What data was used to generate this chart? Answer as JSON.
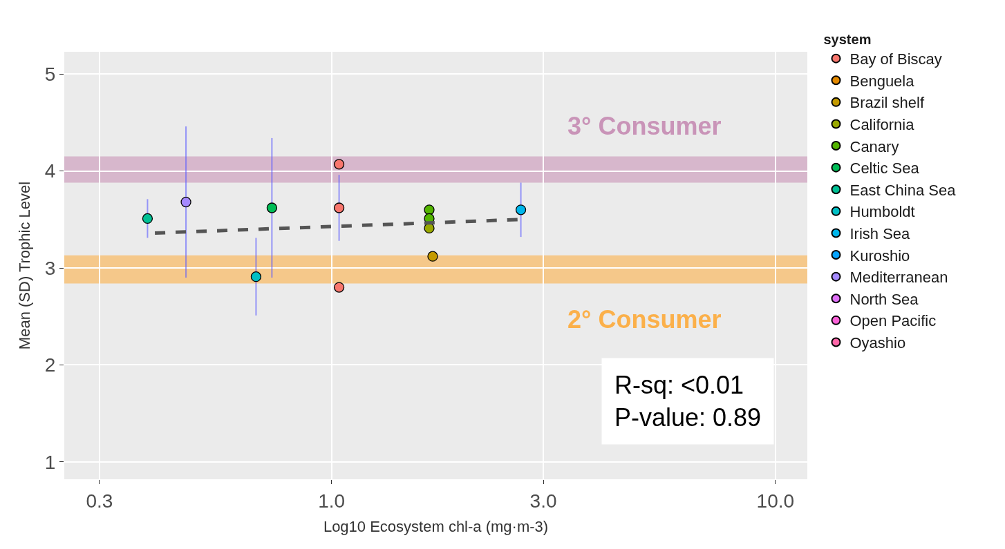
{
  "chart_data": {
    "type": "scatter",
    "xlabel": "Log10 Ecosystem chl-a (mg·m-3)",
    "ylabel": "Mean (SD) Trophic Level",
    "legend_title": "system",
    "log": "x",
    "xlim": [
      0.25,
      11.8
    ],
    "ylim": [
      0.82,
      5.23
    ],
    "xticks": [
      {
        "value": 0.3,
        "label": "0.3"
      },
      {
        "value": 1,
        "label": "1.0"
      },
      {
        "value": 3,
        "label": "3.0"
      },
      {
        "value": 10,
        "label": "10.0"
      }
    ],
    "yticks": [
      1,
      2,
      3,
      4,
      5
    ],
    "grid": true,
    "legend": "right",
    "marker": "circle",
    "series": [
      {
        "name": "Bay of Biscay",
        "color": "#f8766d",
        "x": [
          1.04,
          1.04,
          1.04
        ],
        "values": [
          4.07,
          3.62,
          2.8
        ],
        "errors": [
          null,
          0.34,
          null
        ]
      },
      {
        "name": "Benguela",
        "color": "#e38900"
      },
      {
        "name": "Brazil shelf",
        "color": "#c49a00",
        "x": [
          1.69
        ],
        "values": [
          3.12
        ]
      },
      {
        "name": "California",
        "color": "#99a800",
        "x": [
          1.66
        ],
        "values": [
          3.41
        ]
      },
      {
        "name": "Canary",
        "color": "#53b400",
        "x": [
          1.66,
          1.66
        ],
        "values": [
          3.6,
          3.51
        ]
      },
      {
        "name": "Celtic Sea",
        "color": "#00bc56",
        "x": [
          0.734
        ],
        "values": [
          3.62
        ],
        "errors": [
          0.72
        ]
      },
      {
        "name": "East China Sea",
        "color": "#00c094",
        "x": [
          0.385
        ],
        "values": [
          3.51
        ],
        "errors": [
          0.2
        ]
      },
      {
        "name": "Humboldt",
        "color": "#00bfc4",
        "x": [
          0.676
        ],
        "values": [
          2.91
        ],
        "errors": [
          0.4
        ]
      },
      {
        "name": "Irish Sea",
        "color": "#00b6eb",
        "x": [
          2.67
        ],
        "values": [
          3.6
        ],
        "errors": [
          0.28
        ]
      },
      {
        "name": "Kuroshio",
        "color": "#06a4ff"
      },
      {
        "name": "Mediterranean",
        "color": "#a58aff",
        "x": [
          0.47
        ],
        "values": [
          3.68
        ],
        "errors": [
          0.78
        ]
      },
      {
        "name": "North Sea",
        "color": "#df70f8"
      },
      {
        "name": "Open Pacific",
        "color": "#fb61d7"
      },
      {
        "name": "Oyashio",
        "color": "#ff66a8"
      },
      {
        "type": "line",
        "marker": "none",
        "color": "#555555",
        "line_style": "dashed",
        "x": [
          0.4,
          2.67
        ],
        "values": [
          3.36,
          3.5
        ]
      }
    ],
    "bands": [
      {
        "axis": "y",
        "from": 3.88,
        "to": 4.15,
        "label": "3° Consumer",
        "color": "#c994b8"
      },
      {
        "axis": "y",
        "from": 2.84,
        "to": 3.13,
        "label": "2° Consumer",
        "color": "#fbb04a"
      }
    ],
    "annotations": [
      "R-sq: <0.01\nP-value: 0.89"
    ]
  }
}
